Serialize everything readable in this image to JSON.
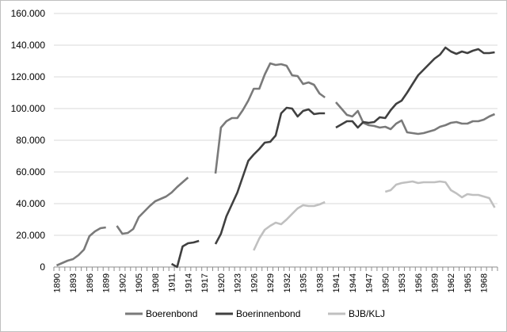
{
  "chart_data": {
    "type": "line",
    "title": "",
    "xlabel": "",
    "ylabel": "",
    "ylim": [
      0,
      160000
    ],
    "y_ticks": [
      "0",
      "20.000",
      "40.000",
      "60.000",
      "80.000",
      "100.000",
      "120.000",
      "140.000",
      "160.000"
    ],
    "x_ticks": [
      "1890",
      "1893",
      "1896",
      "1899",
      "1902",
      "1905",
      "1908",
      "1911",
      "1914",
      "1917",
      "1920",
      "1923",
      "1926",
      "1929",
      "1932",
      "1935",
      "1938",
      "1941",
      "1944",
      "1947",
      "1950",
      "1953",
      "1956",
      "1959",
      "1962",
      "1965",
      "1968"
    ],
    "grid": "horizontal",
    "legend_position": "bottom",
    "series": [
      {
        "name": "Boerenbond",
        "color": "#7a7a7a",
        "segments": [
          [
            [
              1890,
              1000
            ],
            [
              1891,
              2500
            ],
            [
              1892,
              4000
            ],
            [
              1893,
              5000
            ],
            [
              1894,
              7500
            ],
            [
              1895,
              11000
            ],
            [
              1896,
              19500
            ],
            [
              1897,
              22500
            ],
            [
              1898,
              24500
            ],
            [
              1899,
              25000
            ]
          ],
          [
            [
              1901,
              26000
            ],
            [
              1902,
              21000
            ],
            [
              1903,
              21500
            ],
            [
              1904,
              24000
            ],
            [
              1905,
              31500
            ],
            [
              1906,
              35000
            ],
            [
              1907,
              38500
            ],
            [
              1908,
              41500
            ],
            [
              1909,
              43000
            ],
            [
              1910,
              44500
            ],
            [
              1911,
              47000
            ],
            [
              1912,
              50500
            ],
            [
              1913,
              53500
            ],
            [
              1914,
              56500
            ]
          ],
          [
            [
              1919,
              59000
            ],
            [
              1920,
              88000
            ],
            [
              1921,
              92000
            ],
            [
              1922,
              94000
            ],
            [
              1923,
              94000
            ],
            [
              1924,
              99000
            ],
            [
              1925,
              105000
            ],
            [
              1926,
              112500
            ],
            [
              1927,
              112500
            ],
            [
              1928,
              121500
            ],
            [
              1929,
              128500
            ],
            [
              1930,
              127500
            ],
            [
              1931,
              128000
            ],
            [
              1932,
              127000
            ],
            [
              1933,
              121000
            ],
            [
              1934,
              120500
            ],
            [
              1935,
              115500
            ],
            [
              1936,
              116500
            ],
            [
              1937,
              115000
            ],
            [
              1938,
              109500
            ],
            [
              1939,
              107000
            ]
          ],
          [
            [
              1941,
              104000
            ],
            [
              1942,
              100000
            ],
            [
              1943,
              96000
            ],
            [
              1944,
              95000
            ],
            [
              1945,
              98500
            ],
            [
              1946,
              91000
            ],
            [
              1947,
              89500
            ],
            [
              1948,
              89000
            ],
            [
              1949,
              88000
            ],
            [
              1950,
              88500
            ],
            [
              1951,
              87000
            ],
            [
              1952,
              90500
            ],
            [
              1953,
              92500
            ],
            [
              1954,
              85000
            ],
            [
              1955,
              84500
            ],
            [
              1956,
              84000
            ],
            [
              1957,
              84500
            ],
            [
              1958,
              85500
            ],
            [
              1959,
              86500
            ],
            [
              1960,
              88500
            ],
            [
              1961,
              89500
            ],
            [
              1962,
              91000
            ],
            [
              1963,
              91500
            ],
            [
              1964,
              90500
            ],
            [
              1965,
              90500
            ],
            [
              1966,
              92000
            ],
            [
              1967,
              92000
            ],
            [
              1968,
              93000
            ],
            [
              1969,
              95000
            ],
            [
              1970,
              96500
            ]
          ]
        ]
      },
      {
        "name": "Boerinnenbond",
        "color": "#404040",
        "segments": [
          [
            [
              1911,
              2000
            ],
            [
              1912,
              0
            ],
            [
              1913,
              13000
            ],
            [
              1914,
              15000
            ],
            [
              1915,
              15500
            ],
            [
              1916,
              16500
            ]
          ],
          [
            [
              1919,
              14500
            ],
            [
              1920,
              21000
            ],
            [
              1921,
              32000
            ],
            [
              1922,
              39500
            ],
            [
              1923,
              47000
            ],
            [
              1924,
              57000
            ],
            [
              1925,
              67000
            ],
            [
              1926,
              71000
            ],
            [
              1927,
              74500
            ],
            [
              1928,
              78500
            ],
            [
              1929,
              79000
            ],
            [
              1930,
              83000
            ],
            [
              1931,
              97000
            ],
            [
              1932,
              100500
            ],
            [
              1933,
              100000
            ],
            [
              1934,
              95000
            ],
            [
              1935,
              98500
            ],
            [
              1936,
              99500
            ],
            [
              1937,
              96500
            ],
            [
              1938,
              97000
            ],
            [
              1939,
              97000
            ]
          ],
          [
            [
              1941,
              88000
            ],
            [
              1942,
              90000
            ],
            [
              1943,
              92000
            ],
            [
              1944,
              92000
            ],
            [
              1945,
              88000
            ],
            [
              1946,
              91500
            ],
            [
              1947,
              91000
            ],
            [
              1948,
              91500
            ],
            [
              1949,
              94500
            ],
            [
              1950,
              94000
            ],
            [
              1951,
              99000
            ],
            [
              1952,
              103000
            ],
            [
              1953,
              105000
            ],
            [
              1954,
              110000
            ],
            [
              1955,
              115500
            ],
            [
              1956,
              121000
            ],
            [
              1957,
              124500
            ],
            [
              1958,
              128000
            ],
            [
              1959,
              131500
            ],
            [
              1960,
              134000
            ],
            [
              1961,
              138500
            ],
            [
              1962,
              136000
            ],
            [
              1963,
              134500
            ],
            [
              1964,
              136000
            ],
            [
              1965,
              135000
            ],
            [
              1966,
              136500
            ],
            [
              1967,
              137500
            ],
            [
              1968,
              135000
            ],
            [
              1969,
              135000
            ],
            [
              1970,
              135500
            ]
          ]
        ]
      },
      {
        "name": "BJB/KLJ",
        "color": "#c0c0c0",
        "segments": [
          [
            [
              1926,
              10500
            ],
            [
              1927,
              18000
            ],
            [
              1928,
              23500
            ],
            [
              1929,
              26000
            ],
            [
              1930,
              28000
            ],
            [
              1931,
              27000
            ],
            [
              1932,
              30000
            ],
            [
              1933,
              33500
            ],
            [
              1934,
              37000
            ],
            [
              1935,
              39000
            ],
            [
              1936,
              38500
            ],
            [
              1937,
              38500
            ],
            [
              1938,
              39500
            ],
            [
              1939,
              41000
            ]
          ],
          [
            [
              1950,
              47500
            ],
            [
              1951,
              48500
            ],
            [
              1952,
              52000
            ],
            [
              1953,
              53000
            ],
            [
              1954,
              53500
            ],
            [
              1955,
              54000
            ],
            [
              1956,
              53000
            ],
            [
              1957,
              53500
            ],
            [
              1958,
              53500
            ],
            [
              1959,
              53500
            ],
            [
              1960,
              54000
            ],
            [
              1961,
              53500
            ],
            [
              1962,
              48500
            ],
            [
              1963,
              46500
            ],
            [
              1964,
              44000
            ],
            [
              1965,
              46000
            ],
            [
              1966,
              45500
            ],
            [
              1967,
              45500
            ],
            [
              1968,
              44500
            ],
            [
              1969,
              43500
            ],
            [
              1970,
              37500
            ]
          ]
        ]
      }
    ]
  }
}
